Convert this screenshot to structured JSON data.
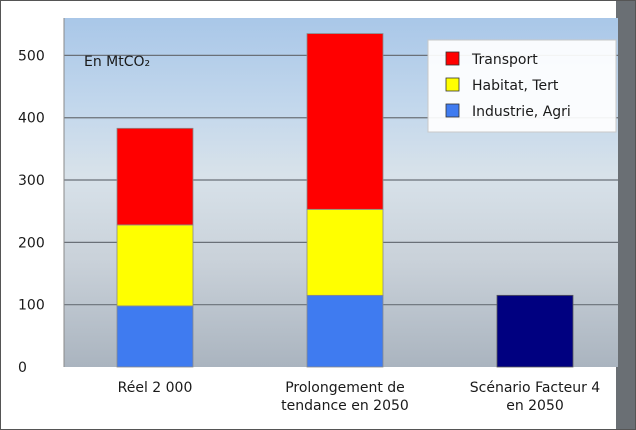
{
  "chart_data": {
    "type": "bar",
    "stacked": true,
    "unit_label": "En MtCO₂",
    "categories": [
      [
        "Réel 2 000"
      ],
      [
        "Prolongement de",
        "tendance en 2050"
      ],
      [
        "Scénario Facteur 4",
        "en 2050"
      ]
    ],
    "series": [
      {
        "name": "Industrie, Agri",
        "color": "#3f7bf0",
        "values": [
          98,
          115,
          0
        ]
      },
      {
        "name": "Habitat, Tert",
        "color": "#ffff00",
        "values": [
          130,
          138,
          0
        ]
      },
      {
        "name": "Transport",
        "color": "#ff0000",
        "values": [
          155,
          282,
          0
        ]
      }
    ],
    "extra_bars": [
      {
        "category_index": 2,
        "value": 115,
        "color": "#000080"
      }
    ],
    "legend_order": [
      "Transport",
      "Habitat, Tert",
      "Industrie, Agri"
    ],
    "legend_position": "top-right",
    "ylim": [
      0,
      560
    ],
    "yticks": [
      0,
      100,
      200,
      300,
      400,
      500
    ],
    "grid": true
  }
}
